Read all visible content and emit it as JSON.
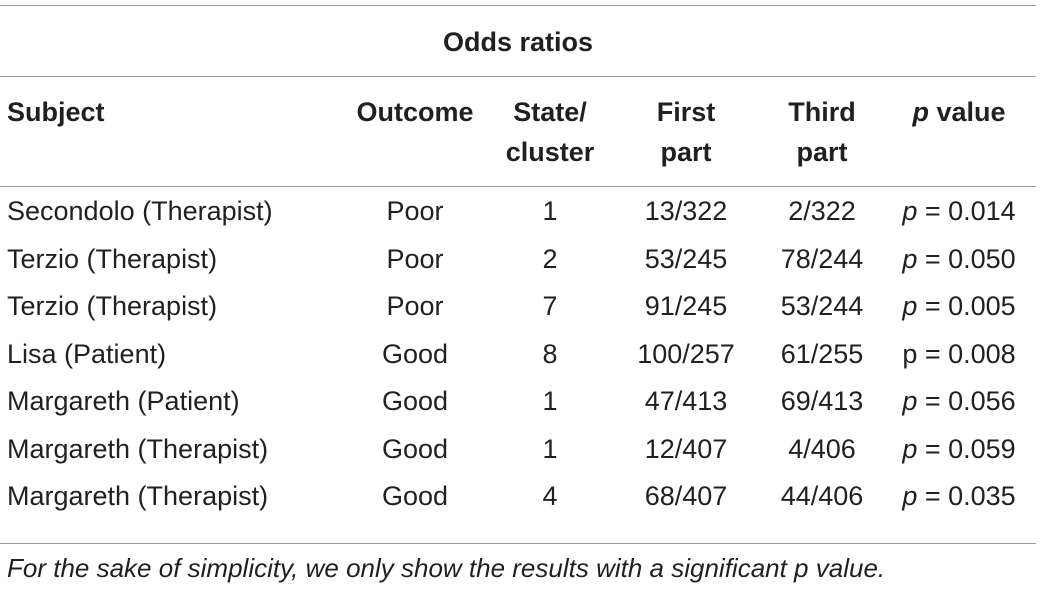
{
  "table": {
    "caption": "Odds ratios",
    "headers": [
      {
        "line1": "Subject",
        "line2": ""
      },
      {
        "line1": "Outcome",
        "line2": ""
      },
      {
        "line1": "State/",
        "line2": "cluster"
      },
      {
        "line1": "First",
        "line2": "part"
      },
      {
        "line1": "Third",
        "line2": "part"
      },
      {
        "line1": "value",
        "prefix": "p",
        "line2": ""
      }
    ],
    "rows": [
      {
        "subject": "Secondolo (Therapist)",
        "outcome": "Poor",
        "state": "1",
        "first": "13/322",
        "third": "2/322",
        "p_symbol": "p",
        "p_value": " = 0.014",
        "p_italic": true
      },
      {
        "subject": "Terzio (Therapist)",
        "outcome": "Poor",
        "state": "2",
        "first": "53/245",
        "third": "78/244",
        "p_symbol": "p",
        "p_value": " = 0.050",
        "p_italic": true
      },
      {
        "subject": "Terzio (Therapist)",
        "outcome": "Poor",
        "state": "7",
        "first": "91/245",
        "third": "53/244",
        "p_symbol": "p",
        "p_value": " = 0.005",
        "p_italic": true
      },
      {
        "subject": "Lisa (Patient)",
        "outcome": "Good",
        "state": "8",
        "first": "100/257",
        "third": "61/255",
        "p_symbol": "p",
        "p_value": " = 0.008",
        "p_italic": false
      },
      {
        "subject": "Margareth (Patient)",
        "outcome": "Good",
        "state": "1",
        "first": "47/413",
        "third": "69/413",
        "p_symbol": "p",
        "p_value": " = 0.056",
        "p_italic": true
      },
      {
        "subject": "Margareth (Therapist)",
        "outcome": "Good",
        "state": "1",
        "first": "12/407",
        "third": "4/406",
        "p_symbol": "p",
        "p_value": " = 0.059",
        "p_italic": true
      },
      {
        "subject": "Margareth (Therapist)",
        "outcome": "Good",
        "state": "4",
        "first": "68/407",
        "third": "44/406",
        "p_symbol": "p",
        "p_value": " = 0.035",
        "p_italic": true
      }
    ],
    "footnote": "For the sake of simplicity, we only show the results with a significant p value."
  }
}
